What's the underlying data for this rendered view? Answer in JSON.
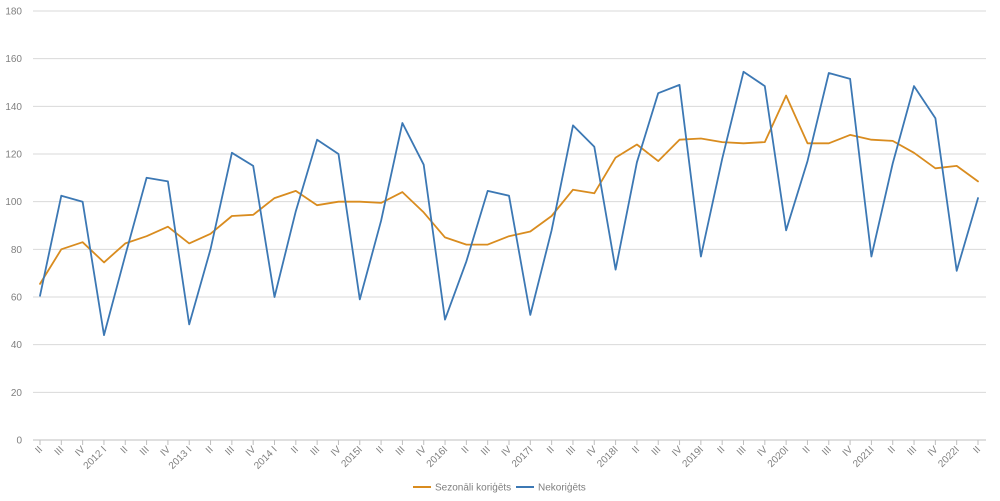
{
  "chart_data": {
    "type": "line",
    "title": "",
    "xlabel": "",
    "ylabel": "",
    "ylim": [
      0,
      180
    ],
    "yticks": [
      0,
      20,
      40,
      60,
      80,
      100,
      120,
      140,
      160,
      180
    ],
    "grid": true,
    "legend_position": "bottom-center",
    "categories": [
      "II",
      "III",
      "IV",
      "2012 I",
      "II",
      "III",
      "IV",
      "2013 I",
      "II",
      "III",
      "IV",
      "2014 I",
      "II",
      "III",
      "IV",
      "2015I",
      "II",
      "III",
      "IV",
      "2016I",
      "II",
      "III",
      "IV",
      "2017I",
      "II",
      "III",
      "IV",
      "2018I",
      "II",
      "III",
      "IV",
      "2019I",
      "II",
      "III",
      "IV",
      "2020I",
      "II",
      "III",
      "IV",
      "2021I",
      "II",
      "III",
      "IV",
      "2022I",
      "II"
    ],
    "series": [
      {
        "name": "Sezonāli koriģēts",
        "color": "#d98c1f",
        "values": [
          65.5,
          80,
          83,
          74.5,
          82.5,
          85.5,
          89.5,
          82.5,
          86.5,
          94,
          94.5,
          101.5,
          104.5,
          98.5,
          100,
          100,
          99.5,
          104,
          95.5,
          85,
          82,
          82,
          85.5,
          87.5,
          94,
          105,
          103.5,
          118.5,
          124,
          117,
          126,
          126.5,
          125,
          124.5,
          125,
          144.5,
          124.5,
          124.5,
          128,
          126,
          125.5,
          120.5,
          114,
          115,
          108.5
        ]
      },
      {
        "name": "Nekoriģēts",
        "color": "#3c78b4",
        "values": [
          60.5,
          102.5,
          100,
          44,
          77.5,
          110,
          108.5,
          48.5,
          80,
          120.5,
          115,
          60,
          96,
          126,
          120,
          59,
          92,
          133,
          115.5,
          50.5,
          75,
          104.5,
          102.5,
          52.5,
          88,
          132,
          123,
          71.5,
          116.5,
          145.5,
          149,
          77,
          118,
          154.5,
          148.5,
          88,
          117,
          154,
          151.5,
          77,
          116,
          148.5,
          135,
          71,
          101.5
        ]
      }
    ]
  }
}
